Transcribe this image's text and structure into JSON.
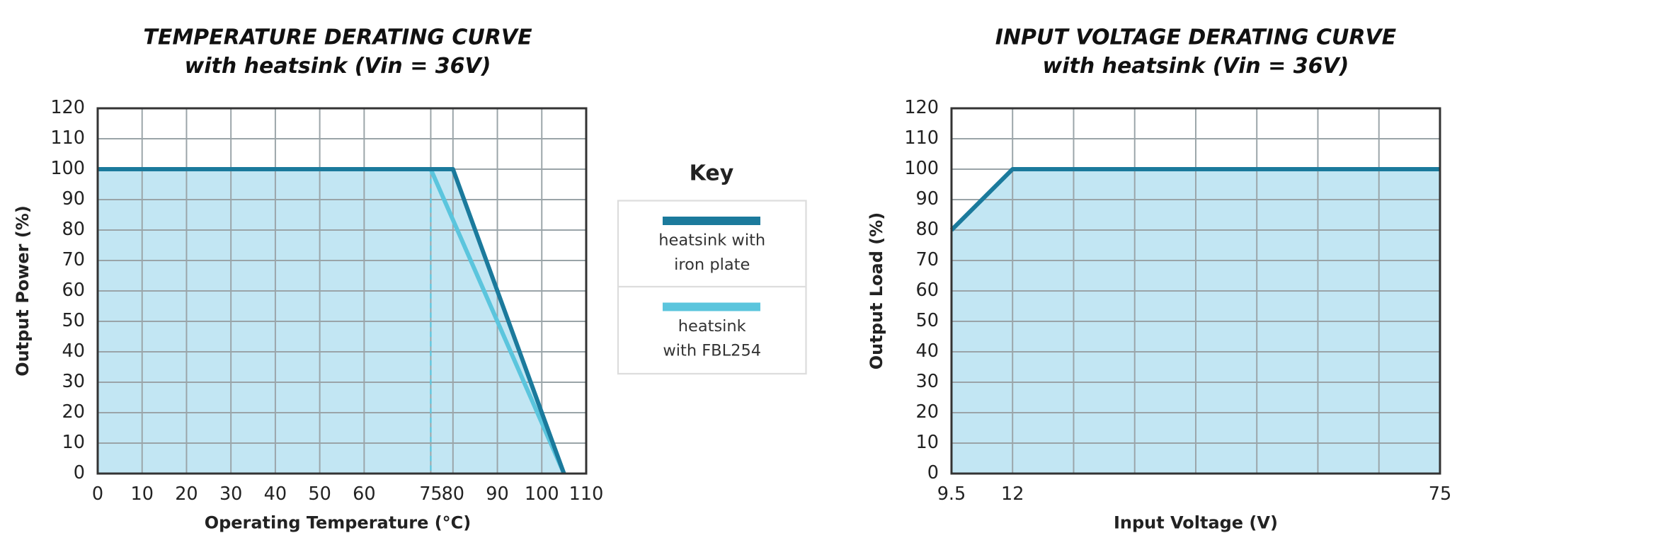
{
  "chart_data": [
    {
      "type": "line",
      "title": "TEMPERATURE DERATING CURVE",
      "subtitle": "with heatsink (Vin = 36V)",
      "x_label": "Operating Temperature (°C)",
      "y_label": "Output Power (%)",
      "xlim": [
        0,
        110
      ],
      "xticks": [
        0,
        10,
        20,
        30,
        40,
        50,
        60,
        75,
        80,
        90,
        100,
        110
      ],
      "ylim": [
        0,
        120
      ],
      "yticks": [
        0,
        10,
        20,
        30,
        40,
        50,
        60,
        70,
        80,
        90,
        100,
        110,
        120
      ],
      "grid": true,
      "fill_color": "#c2e6f3",
      "reference_x": 75,
      "legend_title": "Key",
      "series": [
        {
          "name": "heatsink with\niron plate",
          "color": "#1b7a9c",
          "x": [
            0,
            80,
            105
          ],
          "values": [
            100,
            100,
            0
          ]
        },
        {
          "name": "heatsink\nwith FBL254",
          "color": "#5bc5dd",
          "x": [
            0,
            75,
            105
          ],
          "values": [
            100,
            100,
            0
          ]
        }
      ]
    },
    {
      "type": "line",
      "title": "INPUT VOLTAGE DERATING CURVE",
      "subtitle": "with heatsink (Vin = 36V)",
      "x_label": "Input Voltage (V)",
      "y_label": "Output Load (%)",
      "categories": [
        "9.5",
        "12",
        null,
        null,
        null,
        null,
        null,
        null,
        "75"
      ],
      "ylim": [
        0,
        120
      ],
      "yticks": [
        0,
        10,
        20,
        30,
        40,
        50,
        60,
        70,
        80,
        90,
        100,
        110,
        120
      ],
      "grid": true,
      "fill_color": "#c2e6f3",
      "series": [
        {
          "color": "#1b7a9c",
          "values": [
            80,
            100,
            100,
            100,
            100,
            100,
            100,
            100,
            100
          ]
        }
      ]
    }
  ]
}
